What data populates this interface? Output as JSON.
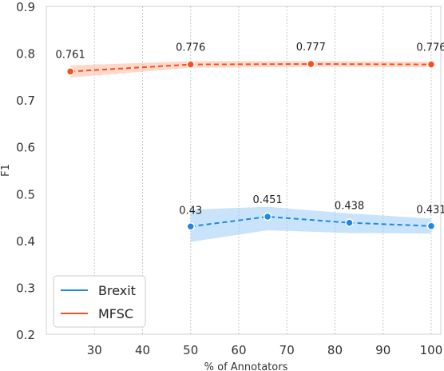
{
  "chart_data": {
    "type": "line",
    "xlabel": "% of Annotators",
    "ylabel": "F1",
    "xlim": [
      20,
      102
    ],
    "ylim": [
      0.2,
      0.9
    ],
    "xticks": [
      "30",
      "40",
      "50",
      "60",
      "70",
      "80",
      "90",
      "100"
    ],
    "yticks": [
      "0.2",
      "0.3",
      "0.4",
      "0.5",
      "0.6",
      "0.7",
      "0.8",
      "0.9"
    ],
    "grid": "x-dotted",
    "legend_position": "lower-left",
    "series": [
      {
        "name": "Brexit",
        "color": "#1e88e5",
        "band_color": "#9ccdf6",
        "x": [
          50,
          66,
          83,
          100
        ],
        "y": [
          0.43,
          0.451,
          0.438,
          0.431
        ],
        "lower": [
          0.397,
          0.422,
          0.416,
          0.415
        ],
        "upper": [
          0.466,
          0.472,
          0.458,
          0.447
        ],
        "labels": [
          "0.43",
          "0.451",
          "0.438",
          "0.431"
        ]
      },
      {
        "name": "MFSC",
        "color": "#f4511e",
        "band_color": "#f9b9a0",
        "x": [
          25,
          50,
          75,
          100
        ],
        "y": [
          0.761,
          0.776,
          0.777,
          0.776
        ],
        "lower": [
          0.748,
          0.769,
          0.771,
          0.77
        ],
        "upper": [
          0.774,
          0.783,
          0.783,
          0.782
        ],
        "labels": [
          "0.761",
          "0.776",
          "0.777",
          "0.776"
        ]
      }
    ]
  }
}
